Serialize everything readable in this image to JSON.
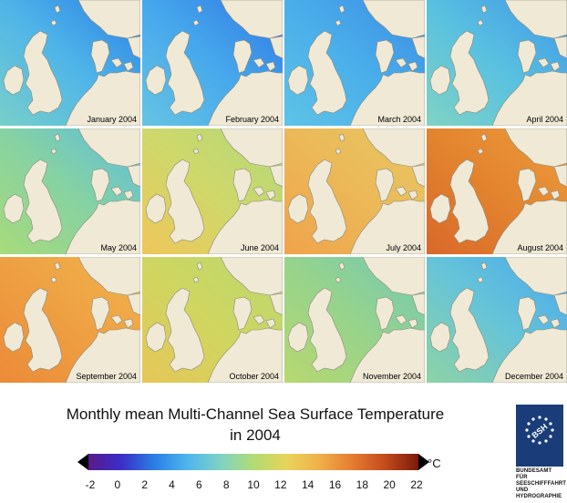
{
  "panels": [
    {
      "label": "January 2004",
      "colors": [
        "#77cfc9",
        "#4fb5e8",
        "#2a7fe6"
      ]
    },
    {
      "label": "February 2004",
      "colors": [
        "#66c4e3",
        "#46a8ec",
        "#2f78e4"
      ]
    },
    {
      "label": "March 2004",
      "colors": [
        "#5ec3e6",
        "#4aaeea",
        "#3a8be6"
      ]
    },
    {
      "label": "April 2004",
      "colors": [
        "#7fd3c4",
        "#58c0e0",
        "#3f96e8"
      ]
    },
    {
      "label": "May 2004",
      "colors": [
        "#a8db7a",
        "#86d2a2",
        "#5cbde0"
      ]
    },
    {
      "label": "June 2004",
      "colors": [
        "#f0c65a",
        "#cfd86a",
        "#b2d97a"
      ]
    },
    {
      "label": "July 2004",
      "colors": [
        "#f0a34a",
        "#ecb858",
        "#e6c862"
      ]
    },
    {
      "label": "August 2004",
      "colors": [
        "#d9682a",
        "#e3842e",
        "#ee9c3e"
      ]
    },
    {
      "label": "September 2004",
      "colors": [
        "#ec8a38",
        "#eea042",
        "#f2b44e"
      ]
    },
    {
      "label": "October 2004",
      "colors": [
        "#e6c658",
        "#cfd660",
        "#b9d870"
      ]
    },
    {
      "label": "November 2004",
      "colors": [
        "#b8d870",
        "#96d38c",
        "#72c9b6"
      ]
    },
    {
      "label": "December 2004",
      "colors": [
        "#8ed3a4",
        "#66c4d8",
        "#48a8ec"
      ]
    }
  ],
  "title_line1": "Monthly mean Multi-Channel Sea Surface Temperature",
  "title_line2": "in 2004",
  "legend": {
    "unit": "°C",
    "ticks": [
      "-2",
      "0",
      "2",
      "4",
      "6",
      "8",
      "10",
      "12",
      "14",
      "16",
      "18",
      "20",
      "22"
    ],
    "gradient": [
      "#5a1a8a",
      "#3a2fc8",
      "#2a7fe6",
      "#4fb5ec",
      "#7fd3c4",
      "#b0dc74",
      "#e8d45a",
      "#f0b04a",
      "#e57c30",
      "#c44a1c",
      "#7a1a0a"
    ],
    "min": -2,
    "max": 22
  },
  "logo": {
    "mark": "BSH",
    "line1": "BUNDESAMT FÜR",
    "line2": "SEESCHIFFFAHRT",
    "line3": "UND",
    "line4": "HYDROGRAPHIE",
    "color": "#1a3d7a"
  }
}
